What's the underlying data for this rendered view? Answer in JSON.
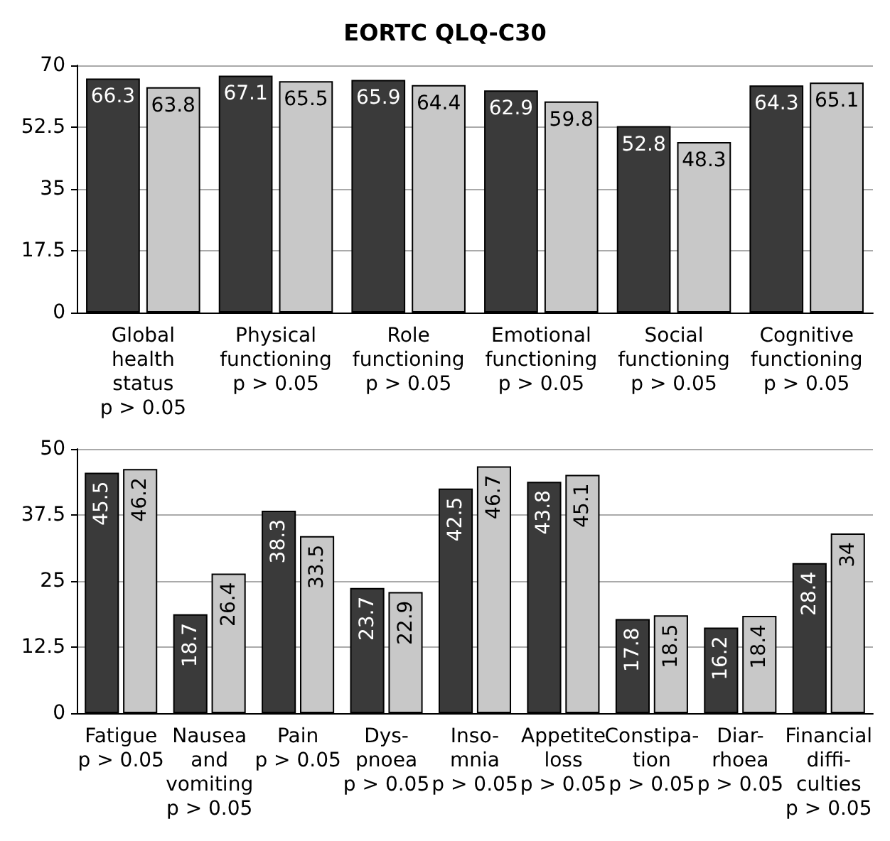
{
  "chart_data": [
    {
      "type": "bar",
      "title": "EORTC QLQ-C30",
      "categories": [
        "Global\nhealth\nstatus\np > 0.05",
        "Physical\nfunctioning\np > 0.05",
        "Role\nfunctioning\np > 0.05",
        "Emotional\nfunctioning\np > 0.05",
        "Social\nfunctioning\np > 0.05",
        "Cognitive\nfunctioning\np > 0.05"
      ],
      "series": [
        {
          "color": "#3a3a3a",
          "values": [
            66.3,
            67.1,
            65.9,
            62.9,
            52.8,
            64.3
          ]
        },
        {
          "color": "#c8c8c8",
          "values": [
            63.8,
            65.5,
            64.4,
            59.8,
            48.3,
            65.1
          ]
        }
      ],
      "ylim": [
        0,
        70
      ],
      "yticks": [
        0,
        17.5,
        35,
        52.5,
        70
      ],
      "grid": "y",
      "data_labels": true
    },
    {
      "type": "bar",
      "categories": [
        "Fatigue\np > 0.05",
        "Nausea\nand\nvomiting\np > 0.05",
        "Pain\np > 0.05",
        "Dys-\npnoea\np > 0.05",
        "Inso-\nmnia\np > 0.05",
        "Appetite\nloss\np > 0.05",
        "Constipa-\ntion\np > 0.05",
        "Diar-\nrhoea\np > 0.05",
        "Financial\ndiffi-\nculties\np > 0.05"
      ],
      "series": [
        {
          "color": "#3a3a3a",
          "values": [
            45.5,
            18.7,
            38.3,
            23.7,
            42.5,
            43.8,
            17.8,
            16.2,
            28.4
          ]
        },
        {
          "color": "#c8c8c8",
          "values": [
            46.2,
            26.4,
            33.5,
            22.9,
            46.7,
            45.1,
            18.5,
            18.4,
            34
          ]
        }
      ],
      "ylim": [
        0,
        50
      ],
      "yticks": [
        0,
        12.5,
        25,
        37.5,
        50
      ],
      "grid": "y",
      "data_labels": true
    }
  ]
}
